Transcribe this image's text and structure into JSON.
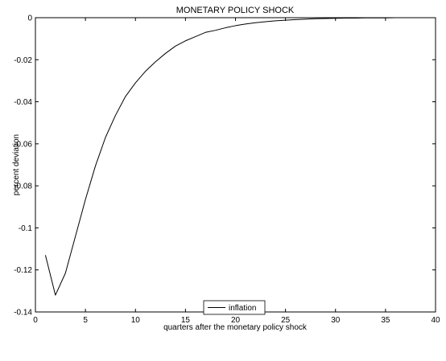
{
  "chart_data": {
    "type": "line",
    "title": "MONETARY POLICY SHOCK",
    "xlabel": "quarters after the monetary policy shock",
    "ylabel": "percent deviation",
    "xlim": [
      0,
      40
    ],
    "ylim": [
      -0.14,
      0
    ],
    "xticks": [
      0,
      5,
      10,
      15,
      20,
      25,
      30,
      35,
      40
    ],
    "xtick_labels": [
      "0",
      "5",
      "10",
      "15",
      "20",
      "25",
      "30",
      "35",
      "40"
    ],
    "yticks": [
      0,
      -0.02,
      -0.04,
      -0.06,
      -0.08,
      -0.1,
      -0.12,
      -0.14
    ],
    "ytick_labels": [
      "0",
      "-0.02",
      "-0.04",
      "-0.06",
      "-0.08",
      "-0.1",
      "-0.12",
      "-0.14"
    ],
    "grid": false,
    "legend_position": "bottom-center",
    "series": [
      {
        "name": "inflation",
        "color": "#000000",
        "x": [
          1,
          2,
          3,
          4,
          5,
          6,
          7,
          8,
          9,
          10,
          11,
          12,
          13,
          14,
          15,
          16,
          17,
          18,
          19,
          20,
          21,
          22,
          23,
          24,
          25,
          26,
          27,
          28,
          29,
          30,
          31,
          32,
          33,
          34,
          35,
          36,
          37,
          38,
          39,
          40
        ],
        "y": [
          -0.113,
          -0.132,
          -0.1215,
          -0.104,
          -0.0865,
          -0.0705,
          -0.057,
          -0.0465,
          -0.0375,
          -0.031,
          -0.0255,
          -0.021,
          -0.017,
          -0.0135,
          -0.011,
          -0.009,
          -0.007,
          -0.006,
          -0.0048,
          -0.0038,
          -0.003,
          -0.0024,
          -0.0019,
          -0.0015,
          -0.0012,
          -0.0009,
          -0.0007,
          -0.0005,
          -0.0004,
          -0.0003,
          -0.0002,
          -0.0002,
          -0.0001,
          -0.0001,
          -0.0001,
          0,
          0,
          0,
          0,
          0
        ]
      }
    ]
  }
}
